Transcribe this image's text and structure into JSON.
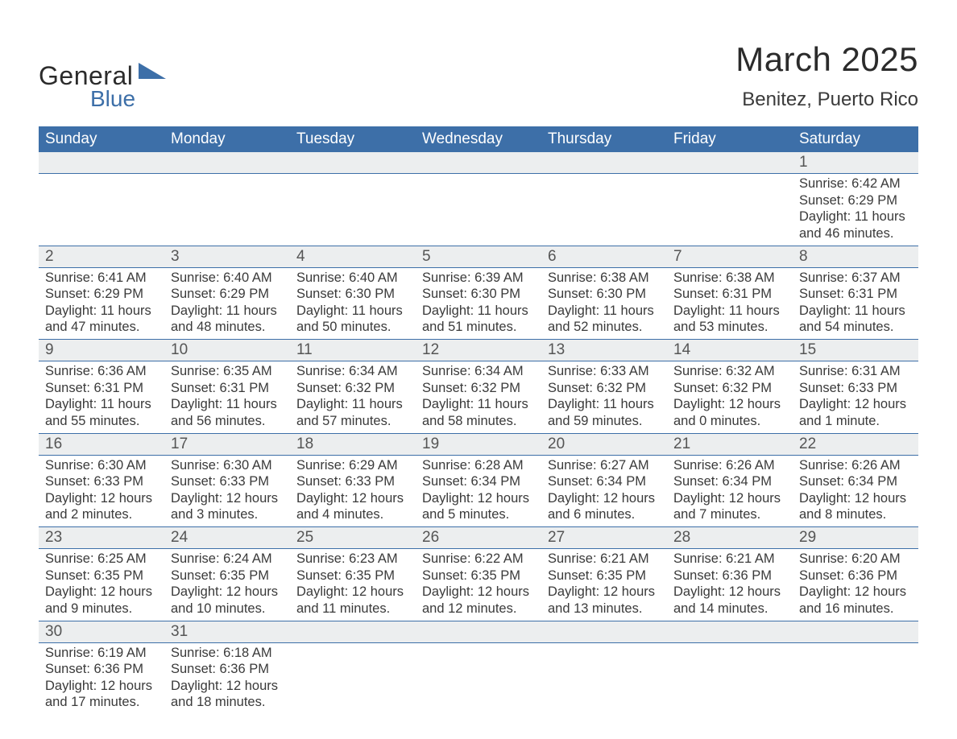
{
  "logo": {
    "top": "General",
    "bottom": "Blue",
    "triangle_color": "#3d6fa8"
  },
  "title": {
    "month": "March 2025",
    "location": "Benitez, Puerto Rico"
  },
  "colors": {
    "header_bg": "#3d6fa8",
    "header_text": "#ffffff",
    "daynum_bg": "#eceeef",
    "row_border": "#3d6fa8",
    "body_text": "#3a3a3a"
  },
  "weekdays": [
    "Sunday",
    "Monday",
    "Tuesday",
    "Wednesday",
    "Thursday",
    "Friday",
    "Saturday"
  ],
  "weeks": [
    [
      null,
      null,
      null,
      null,
      null,
      null,
      {
        "n": "1",
        "sr": "Sunrise: 6:42 AM",
        "ss": "Sunset: 6:29 PM",
        "d1": "Daylight: 11 hours",
        "d2": "and 46 minutes."
      }
    ],
    [
      {
        "n": "2",
        "sr": "Sunrise: 6:41 AM",
        "ss": "Sunset: 6:29 PM",
        "d1": "Daylight: 11 hours",
        "d2": "and 47 minutes."
      },
      {
        "n": "3",
        "sr": "Sunrise: 6:40 AM",
        "ss": "Sunset: 6:29 PM",
        "d1": "Daylight: 11 hours",
        "d2": "and 48 minutes."
      },
      {
        "n": "4",
        "sr": "Sunrise: 6:40 AM",
        "ss": "Sunset: 6:30 PM",
        "d1": "Daylight: 11 hours",
        "d2": "and 50 minutes."
      },
      {
        "n": "5",
        "sr": "Sunrise: 6:39 AM",
        "ss": "Sunset: 6:30 PM",
        "d1": "Daylight: 11 hours",
        "d2": "and 51 minutes."
      },
      {
        "n": "6",
        "sr": "Sunrise: 6:38 AM",
        "ss": "Sunset: 6:30 PM",
        "d1": "Daylight: 11 hours",
        "d2": "and 52 minutes."
      },
      {
        "n": "7",
        "sr": "Sunrise: 6:38 AM",
        "ss": "Sunset: 6:31 PM",
        "d1": "Daylight: 11 hours",
        "d2": "and 53 minutes."
      },
      {
        "n": "8",
        "sr": "Sunrise: 6:37 AM",
        "ss": "Sunset: 6:31 PM",
        "d1": "Daylight: 11 hours",
        "d2": "and 54 minutes."
      }
    ],
    [
      {
        "n": "9",
        "sr": "Sunrise: 6:36 AM",
        "ss": "Sunset: 6:31 PM",
        "d1": "Daylight: 11 hours",
        "d2": "and 55 minutes."
      },
      {
        "n": "10",
        "sr": "Sunrise: 6:35 AM",
        "ss": "Sunset: 6:31 PM",
        "d1": "Daylight: 11 hours",
        "d2": "and 56 minutes."
      },
      {
        "n": "11",
        "sr": "Sunrise: 6:34 AM",
        "ss": "Sunset: 6:32 PM",
        "d1": "Daylight: 11 hours",
        "d2": "and 57 minutes."
      },
      {
        "n": "12",
        "sr": "Sunrise: 6:34 AM",
        "ss": "Sunset: 6:32 PM",
        "d1": "Daylight: 11 hours",
        "d2": "and 58 minutes."
      },
      {
        "n": "13",
        "sr": "Sunrise: 6:33 AM",
        "ss": "Sunset: 6:32 PM",
        "d1": "Daylight: 11 hours",
        "d2": "and 59 minutes."
      },
      {
        "n": "14",
        "sr": "Sunrise: 6:32 AM",
        "ss": "Sunset: 6:32 PM",
        "d1": "Daylight: 12 hours",
        "d2": "and 0 minutes."
      },
      {
        "n": "15",
        "sr": "Sunrise: 6:31 AM",
        "ss": "Sunset: 6:33 PM",
        "d1": "Daylight: 12 hours",
        "d2": "and 1 minute."
      }
    ],
    [
      {
        "n": "16",
        "sr": "Sunrise: 6:30 AM",
        "ss": "Sunset: 6:33 PM",
        "d1": "Daylight: 12 hours",
        "d2": "and 2 minutes."
      },
      {
        "n": "17",
        "sr": "Sunrise: 6:30 AM",
        "ss": "Sunset: 6:33 PM",
        "d1": "Daylight: 12 hours",
        "d2": "and 3 minutes."
      },
      {
        "n": "18",
        "sr": "Sunrise: 6:29 AM",
        "ss": "Sunset: 6:33 PM",
        "d1": "Daylight: 12 hours",
        "d2": "and 4 minutes."
      },
      {
        "n": "19",
        "sr": "Sunrise: 6:28 AM",
        "ss": "Sunset: 6:34 PM",
        "d1": "Daylight: 12 hours",
        "d2": "and 5 minutes."
      },
      {
        "n": "20",
        "sr": "Sunrise: 6:27 AM",
        "ss": "Sunset: 6:34 PM",
        "d1": "Daylight: 12 hours",
        "d2": "and 6 minutes."
      },
      {
        "n": "21",
        "sr": "Sunrise: 6:26 AM",
        "ss": "Sunset: 6:34 PM",
        "d1": "Daylight: 12 hours",
        "d2": "and 7 minutes."
      },
      {
        "n": "22",
        "sr": "Sunrise: 6:26 AM",
        "ss": "Sunset: 6:34 PM",
        "d1": "Daylight: 12 hours",
        "d2": "and 8 minutes."
      }
    ],
    [
      {
        "n": "23",
        "sr": "Sunrise: 6:25 AM",
        "ss": "Sunset: 6:35 PM",
        "d1": "Daylight: 12 hours",
        "d2": "and 9 minutes."
      },
      {
        "n": "24",
        "sr": "Sunrise: 6:24 AM",
        "ss": "Sunset: 6:35 PM",
        "d1": "Daylight: 12 hours",
        "d2": "and 10 minutes."
      },
      {
        "n": "25",
        "sr": "Sunrise: 6:23 AM",
        "ss": "Sunset: 6:35 PM",
        "d1": "Daylight: 12 hours",
        "d2": "and 11 minutes."
      },
      {
        "n": "26",
        "sr": "Sunrise: 6:22 AM",
        "ss": "Sunset: 6:35 PM",
        "d1": "Daylight: 12 hours",
        "d2": "and 12 minutes."
      },
      {
        "n": "27",
        "sr": "Sunrise: 6:21 AM",
        "ss": "Sunset: 6:35 PM",
        "d1": "Daylight: 12 hours",
        "d2": "and 13 minutes."
      },
      {
        "n": "28",
        "sr": "Sunrise: 6:21 AM",
        "ss": "Sunset: 6:36 PM",
        "d1": "Daylight: 12 hours",
        "d2": "and 14 minutes."
      },
      {
        "n": "29",
        "sr": "Sunrise: 6:20 AM",
        "ss": "Sunset: 6:36 PM",
        "d1": "Daylight: 12 hours",
        "d2": "and 16 minutes."
      }
    ],
    [
      {
        "n": "30",
        "sr": "Sunrise: 6:19 AM",
        "ss": "Sunset: 6:36 PM",
        "d1": "Daylight: 12 hours",
        "d2": "and 17 minutes."
      },
      {
        "n": "31",
        "sr": "Sunrise: 6:18 AM",
        "ss": "Sunset: 6:36 PM",
        "d1": "Daylight: 12 hours",
        "d2": "and 18 minutes."
      },
      null,
      null,
      null,
      null,
      null
    ]
  ]
}
